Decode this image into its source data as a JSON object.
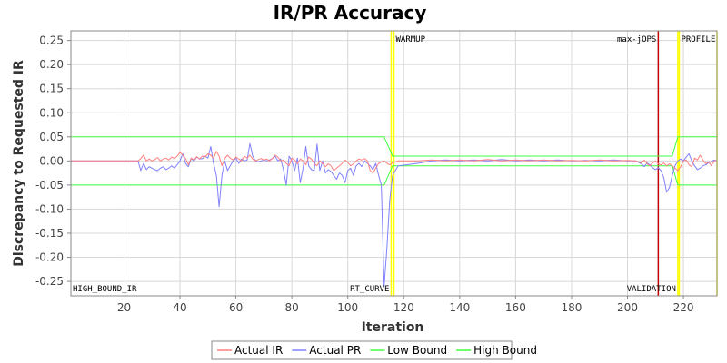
{
  "chart_data": {
    "type": "line",
    "title": "IR/PR Accuracy",
    "xlabel": "Iteration",
    "ylabel": "Discrepancy to Requested IR",
    "xlim": [
      1,
      232
    ],
    "ylim": [
      -0.28,
      0.27
    ],
    "x_ticks": [
      20,
      40,
      60,
      80,
      100,
      120,
      140,
      160,
      180,
      200,
      220
    ],
    "y_ticks": [
      0.25,
      0.2,
      0.15,
      0.1,
      0.05,
      0.0,
      -0.05,
      -0.1,
      -0.15,
      -0.2,
      -0.25
    ],
    "y_tick_labels": [
      "0.25",
      "0.20",
      "0.15",
      "0.10",
      "0.05",
      "0.00",
      "-0.05",
      "-0.10",
      "-0.15",
      "-0.20",
      "-0.25"
    ],
    "grid": true,
    "legend_position": "bottom",
    "series": [
      {
        "name": "Actual IR",
        "color": "#ff8080",
        "x": [
          1,
          25,
          26,
          27,
          28,
          29,
          30,
          31,
          32,
          33,
          34,
          35,
          36,
          37,
          38,
          39,
          40,
          41,
          42,
          43,
          44,
          45,
          46,
          47,
          48,
          49,
          50,
          51,
          52,
          53,
          54,
          55,
          56,
          57,
          58,
          59,
          60,
          61,
          62,
          63,
          64,
          65,
          66,
          67,
          68,
          69,
          70,
          71,
          72,
          73,
          74,
          75,
          76,
          77,
          78,
          79,
          80,
          81,
          82,
          83,
          84,
          85,
          86,
          87,
          88,
          89,
          90,
          91,
          92,
          93,
          94,
          95,
          96,
          97,
          98,
          99,
          100,
          101,
          102,
          103,
          104,
          105,
          106,
          107,
          108,
          109,
          110,
          111,
          112,
          113,
          114,
          115,
          116,
          118,
          125,
          130,
          135,
          140,
          145,
          150,
          155,
          160,
          165,
          170,
          175,
          180,
          185,
          190,
          195,
          200,
          203,
          205,
          206,
          207,
          208,
          209,
          210,
          211,
          212,
          213,
          214,
          215,
          216,
          217,
          218,
          219,
          220,
          221,
          222,
          223,
          224,
          225,
          226,
          227,
          228,
          229,
          230,
          231,
          232
        ],
        "values": [
          0.0,
          0.0,
          0.005,
          0.012,
          0.0,
          0.004,
          0.0,
          0.003,
          0.007,
          0.0,
          0.004,
          0.006,
          0.002,
          0.008,
          0.005,
          0.01,
          0.018,
          0.012,
          0.005,
          -0.008,
          0.006,
          0.002,
          0.009,
          0.004,
          0.01,
          0.008,
          0.015,
          0.012,
          0.005,
          0.02,
          0.01,
          -0.01,
          0.005,
          0.012,
          0.006,
          0.002,
          0.008,
          0.004,
          0.0,
          0.01,
          0.006,
          0.012,
          0.004,
          0.0,
          0.003,
          0.005,
          0.002,
          0.004,
          0.0,
          0.005,
          0.012,
          0.008,
          0.0,
          0.002,
          -0.005,
          -0.01,
          0.006,
          0.002,
          -0.006,
          0.004,
          0.0,
          -0.008,
          0.008,
          0.004,
          -0.005,
          -0.01,
          0.0,
          -0.005,
          -0.012,
          -0.006,
          -0.01,
          -0.02,
          -0.015,
          -0.01,
          -0.005,
          0.002,
          -0.003,
          -0.01,
          -0.006,
          0.0,
          0.004,
          0.002,
          0.005,
          0.0,
          -0.02,
          -0.025,
          -0.015,
          -0.005,
          -0.002,
          0.0,
          -0.005,
          -0.008,
          -0.004,
          0.0,
          0.0,
          0.002,
          0.0,
          0.002,
          0.0,
          0.003,
          0.0,
          0.002,
          0.0,
          0.002,
          0.0,
          0.001,
          0.0,
          0.002,
          0.0,
          0.001,
          0.0,
          -0.004,
          0.002,
          -0.006,
          -0.01,
          -0.004,
          0.0,
          -0.006,
          -0.008,
          -0.004,
          -0.01,
          -0.006,
          -0.01,
          -0.015,
          -0.02,
          -0.012,
          0.0,
          0.002,
          -0.008,
          -0.012,
          0.006,
          0.002,
          0.012,
          0.002,
          -0.006,
          -0.002,
          -0.01,
          0.0,
          0.0
        ]
      },
      {
        "name": "Actual PR",
        "color": "#8080ff",
        "x": [
          1,
          25,
          26,
          27,
          28,
          29,
          30,
          31,
          32,
          33,
          34,
          35,
          36,
          37,
          38,
          39,
          40,
          41,
          42,
          43,
          44,
          45,
          46,
          47,
          48,
          49,
          50,
          51,
          52,
          53,
          54,
          55,
          56,
          57,
          58,
          59,
          60,
          61,
          62,
          63,
          64,
          65,
          66,
          67,
          68,
          69,
          70,
          71,
          72,
          73,
          74,
          75,
          76,
          77,
          78,
          79,
          80,
          81,
          82,
          83,
          84,
          85,
          86,
          87,
          88,
          89,
          90,
          91,
          92,
          93,
          94,
          95,
          96,
          97,
          98,
          99,
          100,
          101,
          102,
          103,
          104,
          105,
          106,
          107,
          108,
          109,
          110,
          111,
          112,
          113,
          114,
          115,
          116,
          118,
          125,
          130,
          135,
          140,
          145,
          150,
          155,
          160,
          165,
          170,
          175,
          180,
          185,
          190,
          195,
          200,
          203,
          205,
          206,
          207,
          208,
          209,
          210,
          211,
          212,
          213,
          214,
          215,
          216,
          217,
          218,
          219,
          220,
          221,
          222,
          223,
          224,
          225,
          226,
          227,
          228,
          229,
          230,
          231,
          232
        ],
        "values": [
          0.0,
          0.0,
          -0.02,
          -0.005,
          -0.018,
          -0.012,
          -0.015,
          -0.018,
          -0.02,
          -0.015,
          -0.012,
          -0.018,
          -0.015,
          -0.01,
          -0.015,
          -0.008,
          0.0,
          0.015,
          -0.005,
          -0.012,
          0.005,
          0.0,
          0.008,
          0.004,
          0.005,
          0.01,
          0.006,
          0.03,
          -0.005,
          -0.03,
          -0.095,
          -0.03,
          0.0,
          -0.02,
          -0.01,
          0.0,
          0.006,
          -0.005,
          0.004,
          0.0,
          0.002,
          0.036,
          0.01,
          0.0,
          -0.002,
          0.0,
          0.002,
          0.0,
          0.002,
          0.005,
          0.01,
          0.0,
          0.004,
          -0.018,
          -0.05,
          0.01,
          0.0,
          -0.02,
          0.006,
          -0.045,
          -0.015,
          0.03,
          -0.01,
          -0.018,
          -0.02,
          0.035,
          -0.02,
          0.0,
          -0.025,
          -0.018,
          -0.022,
          -0.03,
          -0.038,
          -0.025,
          -0.03,
          -0.045,
          -0.02,
          -0.015,
          -0.03,
          -0.01,
          -0.005,
          -0.012,
          0.0,
          -0.005,
          -0.01,
          -0.018,
          -0.005,
          -0.03,
          -0.05,
          -0.26,
          -0.18,
          -0.08,
          -0.03,
          -0.01,
          -0.005,
          0.0,
          0.002,
          0.0,
          0.002,
          0.0,
          0.003,
          0.0,
          0.002,
          0.0,
          0.002,
          0.0,
          0.001,
          0.0,
          0.002,
          0.0,
          0.0,
          -0.006,
          -0.012,
          -0.004,
          -0.008,
          -0.014,
          -0.018,
          -0.014,
          -0.02,
          -0.035,
          -0.065,
          -0.055,
          -0.03,
          -0.01,
          0.0,
          0.004,
          0.0,
          0.008,
          0.015,
          0.0,
          -0.01,
          -0.018,
          -0.015,
          -0.01,
          -0.008,
          -0.004,
          -0.001,
          0.002,
          0.0
        ]
      },
      {
        "name": "Low Bound",
        "color": "#40ff40",
        "x": [
          1,
          113,
          116,
          210,
          216,
          218,
          232
        ],
        "values": [
          -0.05,
          -0.05,
          -0.01,
          -0.01,
          -0.01,
          -0.05,
          -0.05
        ]
      },
      {
        "name": "High Bound",
        "color": "#40ff40",
        "x": [
          1,
          113,
          116,
          210,
          216,
          218,
          232
        ],
        "values": [
          0.05,
          0.05,
          0.01,
          0.01,
          0.01,
          0.05,
          0.05
        ]
      }
    ],
    "markers": [
      {
        "x": 116.5,
        "label": "WARMUP",
        "label_pos": "top",
        "color": "#ffff00"
      },
      {
        "x": 115.5,
        "label": "RT_CURVE",
        "label_pos": "bottom",
        "color": "#ffff00"
      },
      {
        "x": 211,
        "label": "max-jOPS",
        "label_pos": "top",
        "color": "#c00000"
      },
      {
        "x": 218.5,
        "label": "PROFILE",
        "label_pos": "top",
        "color": "#ffff00"
      },
      {
        "x": 218,
        "label": "VALIDATION",
        "label_pos": "bottom",
        "color": "#ffff00"
      },
      {
        "x": 232,
        "label": "",
        "label_pos": "none",
        "color": "#ffff00"
      }
    ],
    "corner_labels": [
      {
        "text": "HIGH_BOUND_IR",
        "position": "bottom-left"
      }
    ]
  }
}
